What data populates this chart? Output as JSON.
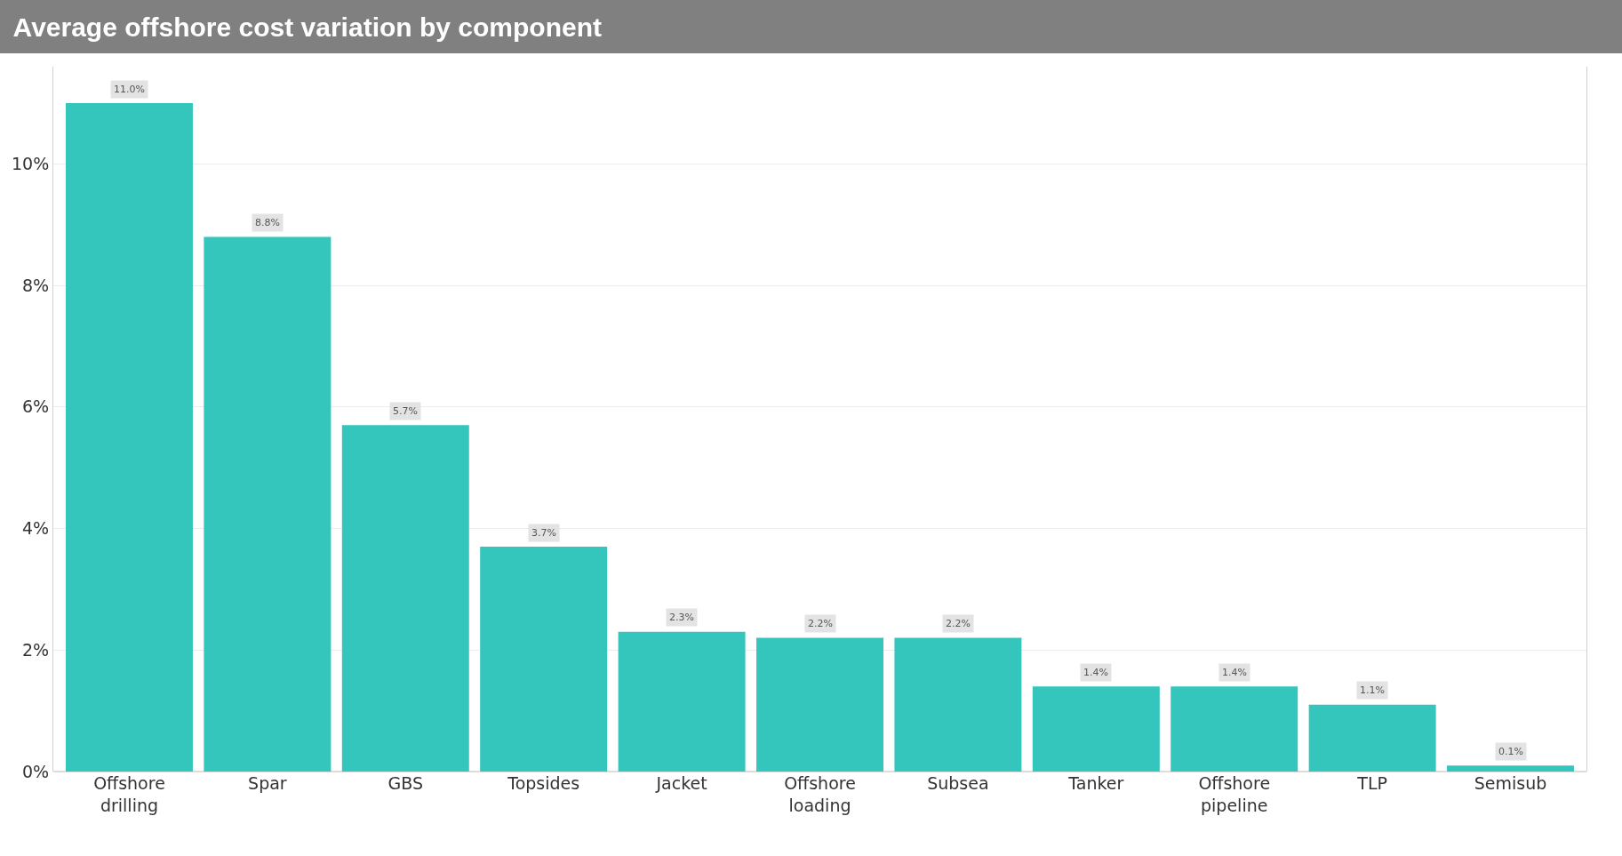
{
  "chart_data": {
    "type": "bar",
    "title": "Average offshore cost variation by component",
    "categories": [
      "Offshore drilling",
      "Spar",
      "GBS",
      "Topsides",
      "Jacket",
      "Offshore loading",
      "Subsea",
      "Tanker",
      "Offshore pipeline",
      "TLP",
      "Semisub"
    ],
    "values": [
      11.0,
      8.8,
      5.7,
      3.7,
      2.3,
      2.2,
      2.2,
      1.4,
      1.4,
      1.1,
      0.1
    ],
    "value_labels": [
      "11.0%",
      "8.8%",
      "5.7%",
      "3.7%",
      "2.3%",
      "2.2%",
      "2.2%",
      "1.4%",
      "1.4%",
      "1.1%",
      "0.1%"
    ],
    "color": "#34c6bc",
    "ylim": [
      0,
      11.6
    ],
    "yticks": [
      {
        "value": 0,
        "label": "0%"
      },
      {
        "value": 2,
        "label": "2%"
      },
      {
        "value": 4,
        "label": "4%"
      },
      {
        "value": 6,
        "label": "6%"
      },
      {
        "value": 8,
        "label": "8%"
      },
      {
        "value": 10,
        "label": "10%"
      }
    ],
    "grid": "y",
    "legend": false
  }
}
